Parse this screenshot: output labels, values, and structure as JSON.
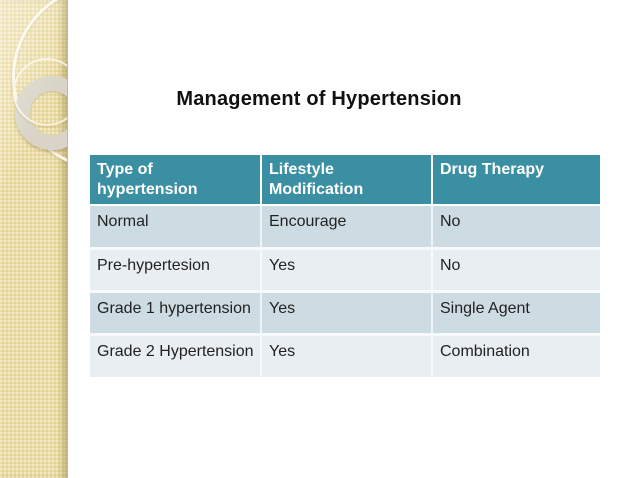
{
  "slide": {
    "title": "Management of Hypertension"
  },
  "table": {
    "headers": [
      "Type of hypertension",
      "Lifestyle Modification",
      "Drug Therapy"
    ],
    "rows": [
      [
        "Normal",
        "Encourage",
        "No"
      ],
      [
        "Pre-hypertesion",
        "Yes",
        "No"
      ],
      [
        "Grade 1 hypertension",
        "Yes",
        "Single Agent"
      ],
      [
        "Grade 2 Hypertension",
        "Yes",
        "Combination"
      ]
    ]
  },
  "colors": {
    "header_bg": "#3a8fa2",
    "header_text": "#ffffff",
    "row_dark": "#cddce2",
    "row_light": "#e9eef2",
    "band_base": "#ebdca3",
    "title_text": "#111111"
  },
  "icons": []
}
